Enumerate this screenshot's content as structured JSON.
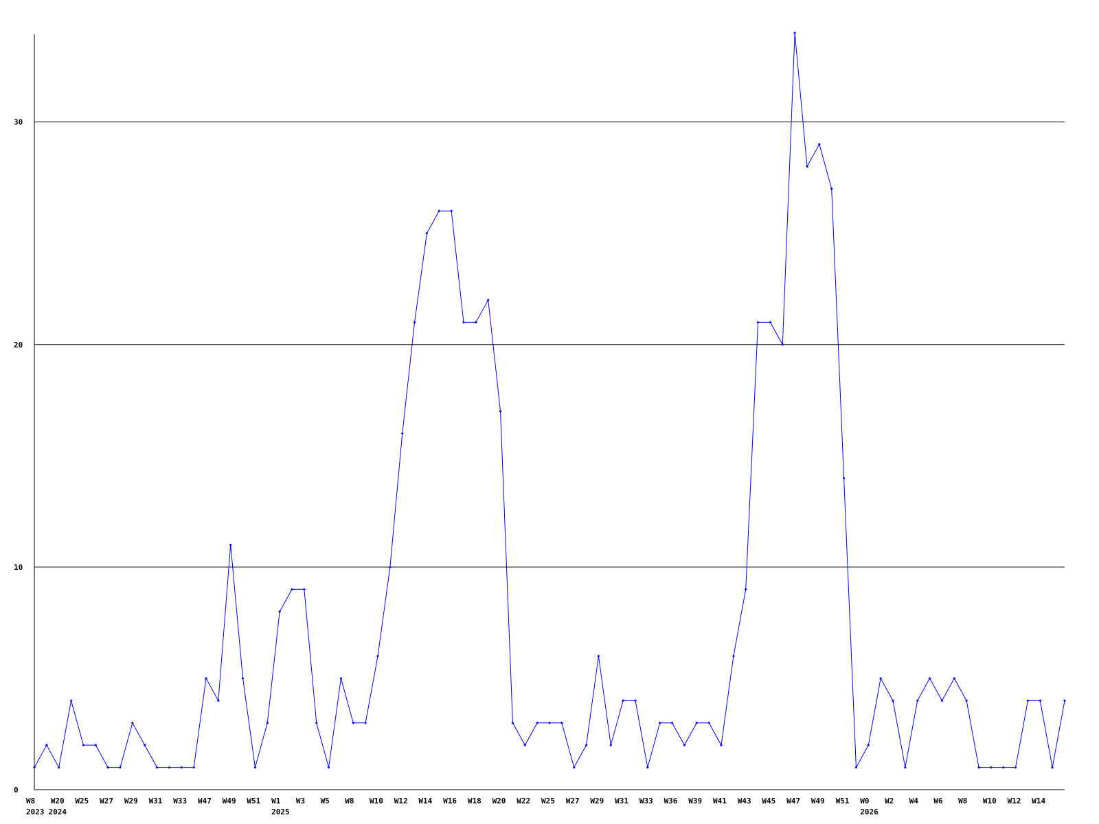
{
  "chart_data": {
    "type": "line",
    "title": "",
    "xlabel": "",
    "ylabel": "",
    "ylim": [
      0,
      34
    ],
    "y_ticks": [
      "0",
      "10",
      "20",
      "30"
    ],
    "grid": true,
    "line_color": "#0000ff",
    "x_tick_labels": [
      "W8",
      "W20",
      "W25",
      "W27",
      "W29",
      "W31",
      "W33",
      "W47",
      "W49",
      "W51",
      "W1",
      "W3",
      "W5",
      "W8",
      "W10",
      "W12",
      "W14",
      "W16",
      "W18",
      "W20",
      "W22",
      "W25",
      "W27",
      "W29",
      "W31",
      "W33",
      "W36",
      "W39",
      "W41",
      "W43",
      "W45",
      "W47",
      "W49",
      "W51",
      "W0",
      "W2",
      "W4",
      "W6",
      "W8",
      "W10",
      "W12",
      "W14"
    ],
    "year_labels": [
      {
        "label": "2023",
        "index": 0
      },
      {
        "label": "2024",
        "index": 1
      },
      {
        "label": "2025",
        "index": 20
      },
      {
        "label": "2026",
        "index": 68
      }
    ],
    "values": [
      1,
      2,
      1,
      4,
      2,
      2,
      1,
      1,
      3,
      2,
      1,
      1,
      1,
      1,
      5,
      4,
      11,
      5,
      1,
      3,
      8,
      9,
      9,
      3,
      1,
      5,
      3,
      3,
      6,
      10,
      16,
      21,
      25,
      26,
      26,
      21,
      21,
      22,
      17,
      3,
      2,
      3,
      3,
      3,
      1,
      2,
      6,
      2,
      4,
      4,
      1,
      3,
      3,
      2,
      3,
      3,
      2,
      6,
      9,
      21,
      21,
      20,
      34,
      28,
      29,
      27,
      14,
      1,
      2,
      5,
      4,
      1,
      4,
      5,
      4,
      5,
      4,
      1,
      1,
      1,
      1,
      4,
      4,
      1,
      4
    ]
  }
}
